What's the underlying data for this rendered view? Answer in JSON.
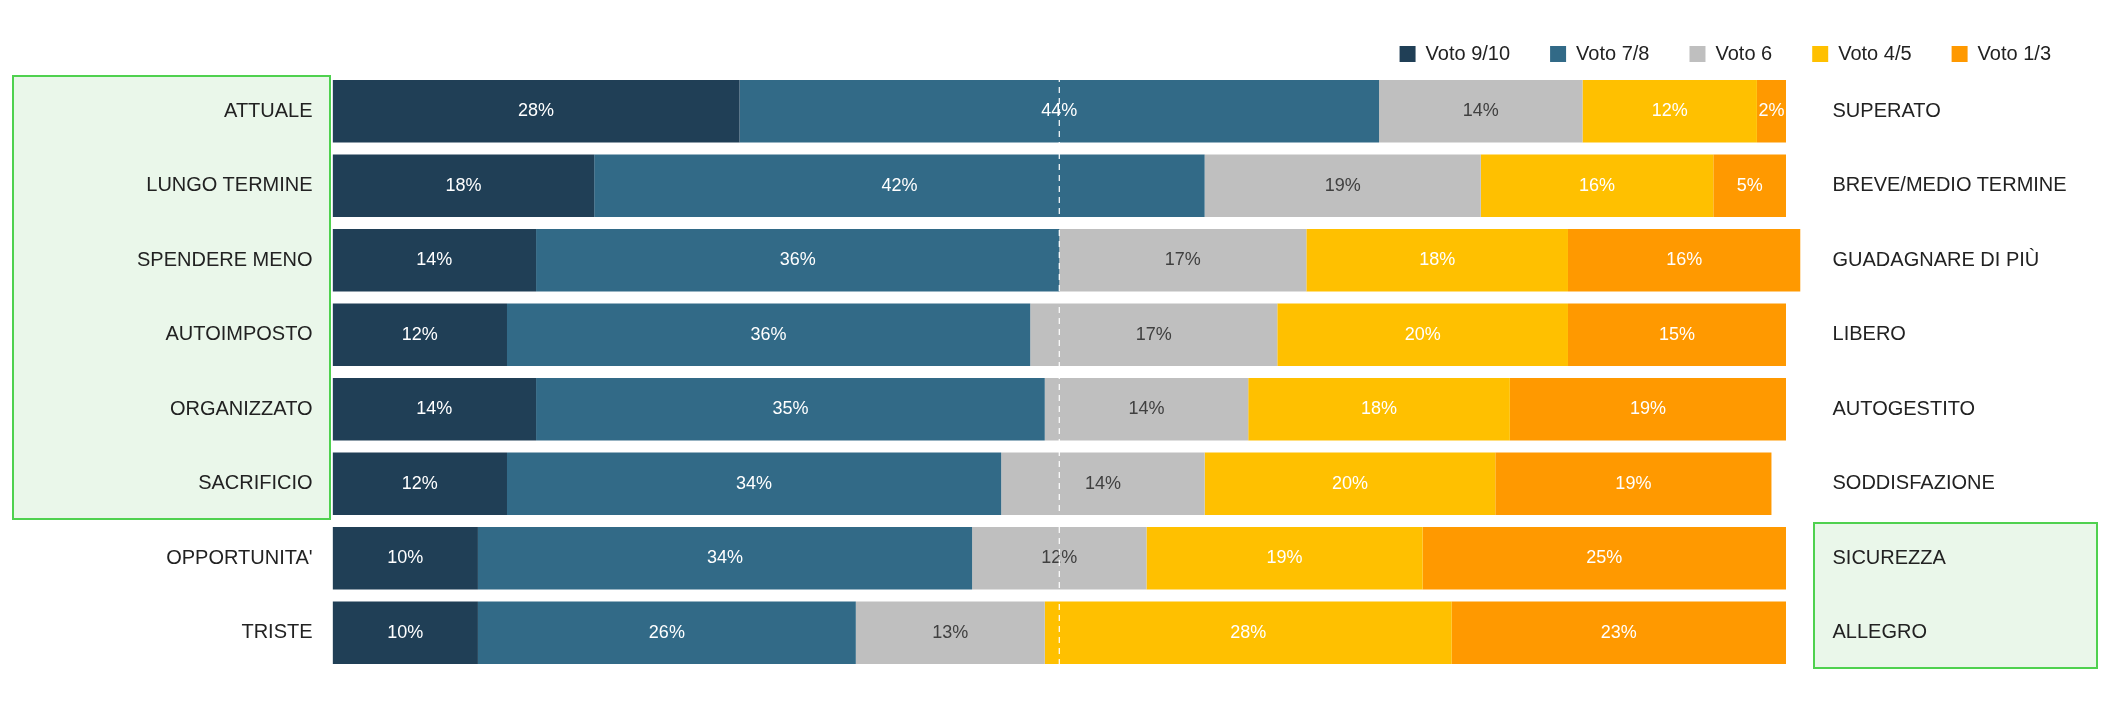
{
  "chart_data": {
    "type": "bar",
    "orientation": "horizontal",
    "stacked": true,
    "legend": "top right",
    "categories": [
      "ATTUALE",
      "LUNGO TERMINE",
      "SPENDERE MENO",
      "AUTOIMPOSTO",
      "ORGANIZZATO",
      "SACRIFICIO",
      "OPPORTUNITA'",
      "TRISTE"
    ],
    "y2_categories": [
      "SUPERATO",
      "BREVE/MEDIO TERMINE",
      "GUADAGNARE DI PIÙ",
      "LIBERO",
      "AUTOGESTITO",
      "SODDISFAZIONE",
      "SICUREZZA",
      "ALLEGRO"
    ],
    "series": [
      {
        "name": "Voto 9/10",
        "color": "#203f56",
        "values": [
          28,
          18,
          14,
          12,
          14,
          12,
          10,
          10
        ],
        "value_labels": [
          "28%",
          "18%",
          "14%",
          "12%",
          "14%",
          "12%",
          "10%",
          "10%"
        ]
      },
      {
        "name": "Voto 7/8",
        "color": "#326a87",
        "values": [
          44,
          42,
          36,
          36,
          35,
          34,
          34,
          26
        ],
        "value_labels": [
          "44%",
          "42%",
          "36%",
          "36%",
          "35%",
          "34%",
          "34%",
          "26%"
        ]
      },
      {
        "name": "Voto 6",
        "color": "#bfbfbf",
        "values": [
          14,
          19,
          17,
          17,
          14,
          14,
          12,
          13
        ],
        "value_labels": [
          "14%",
          "19%",
          "17%",
          "17%",
          "14%",
          "14%",
          "12%",
          "13%"
        ]
      },
      {
        "name": "Voto 4/5",
        "color": "#ffc000",
        "values": [
          12,
          16,
          18,
          20,
          18,
          20,
          19,
          28
        ],
        "value_labels": [
          "12%",
          "16%",
          "18%",
          "20%",
          "18%",
          "20%",
          "19%",
          "28%"
        ]
      },
      {
        "name": "Voto 1/3",
        "color": "#ff9900",
        "values": [
          2,
          5,
          16,
          15,
          19,
          19,
          25,
          23
        ],
        "value_labels": [
          "2%",
          "5%",
          "16%",
          "15%",
          "19%",
          "19%",
          "25%",
          "23%"
        ]
      }
    ],
    "ref_lines": [
      {
        "axis": "x",
        "value": 50,
        "color": "#ffffff",
        "line_style": "dashed"
      }
    ]
  }
}
